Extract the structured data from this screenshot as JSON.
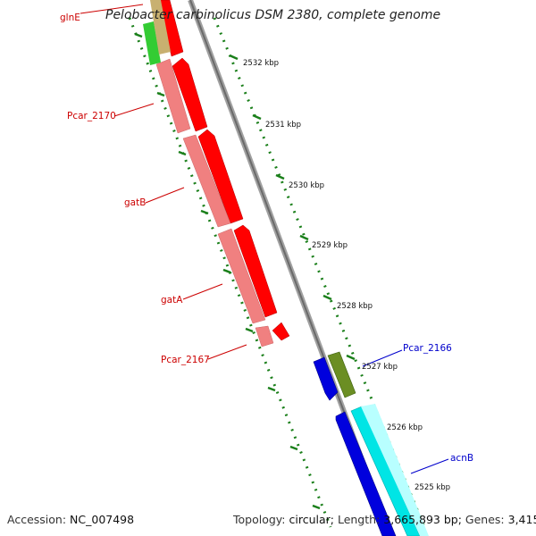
{
  "title": "Pelobacter carbinolicus DSM 2380, complete genome",
  "footer": {
    "accession_label": "Accession:",
    "accession": "NC_007498",
    "topology_label": "Topology:",
    "topology": "circular",
    "length_label": "Length:",
    "length": "3,665,893 bp",
    "genes_label": "Genes:",
    "genes": "3,415"
  },
  "ticks": [
    "2532 kbp",
    "2531 kbp",
    "2530 kbp",
    "2529 kbp",
    "2528 kbp",
    "2527 kbp",
    "2526 kbp",
    "2525 kbp"
  ],
  "gene_labels": [
    {
      "name": "glnE",
      "color": "#cc0000"
    },
    {
      "name": "Pcar_2170",
      "color": "#cc0000"
    },
    {
      "name": "gatB",
      "color": "#cc0000"
    },
    {
      "name": "gatA",
      "color": "#cc0000"
    },
    {
      "name": "Pcar_2167",
      "color": "#cc0000"
    },
    {
      "name": "Pcar_2166",
      "color": "#0000cc"
    },
    {
      "name": "acnB",
      "color": "#0000cc"
    }
  ],
  "colors": {
    "forward_strand": "#ff0000",
    "forward_light": "#f08080",
    "reverse_blue": "#0000dd",
    "reverse_cyan": "#00e5e5",
    "olive": "#6b8e23",
    "green": "#33cc33",
    "backbone": "#808080",
    "ticks": "#1a7f1a"
  }
}
